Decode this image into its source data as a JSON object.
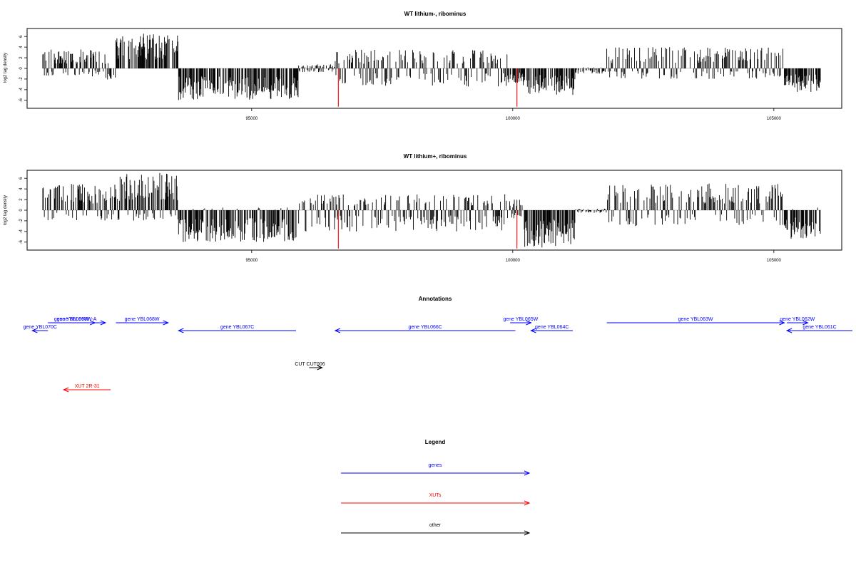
{
  "chart_data": [
    {
      "type": "bar",
      "title": "WT lithium-, ribominus",
      "ylabel": "log2 tag density",
      "xlim": [
        90700,
        106300
      ],
      "ylim": [
        -7.5,
        7.5
      ],
      "yticks": [
        "6",
        "4",
        "2",
        "0",
        "-2",
        "-4",
        "-6"
      ],
      "xticks": [
        95000,
        100000,
        105000
      ],
      "xtick_labels": [
        "95000",
        "100000",
        "105000"
      ],
      "bar_color": "#000000",
      "highlight_color": "#ff0000",
      "highlights": [
        {
          "x": 96660,
          "y": -7.2
        },
        {
          "x": 100080,
          "y": -7.2
        }
      ],
      "profile": [
        {
          "from": 91000,
          "to": 92200,
          "max": 3.6,
          "min": -1.5
        },
        {
          "from": 92200,
          "to": 92400,
          "max": 1.0,
          "min": -2.5
        },
        {
          "from": 92400,
          "to": 93600,
          "max": 6.7,
          "min": 0
        },
        {
          "from": 93600,
          "to": 95900,
          "max": 0,
          "min": -6.0
        },
        {
          "from": 95900,
          "to": 96600,
          "max": 0.8,
          "min": -0.8
        },
        {
          "from": 96600,
          "to": 99900,
          "max": 3.5,
          "min": -3.5
        },
        {
          "from": 99900,
          "to": 100200,
          "max": 0,
          "min": -3.0
        },
        {
          "from": 100200,
          "to": 101200,
          "max": 0,
          "min": -5.0
        },
        {
          "from": 101200,
          "to": 101800,
          "max": 0.2,
          "min": -1.0
        },
        {
          "from": 101800,
          "to": 105200,
          "max": 4.0,
          "min": -2.0
        },
        {
          "from": 105200,
          "to": 105900,
          "max": 0,
          "min": -4.5
        }
      ]
    },
    {
      "type": "bar",
      "title": "WT lithium+, ribominus",
      "ylabel": "log2 tag density",
      "xlim": [
        90700,
        106300
      ],
      "ylim": [
        -7.5,
        7.5
      ],
      "yticks": [
        "6",
        "4",
        "2",
        "0",
        "-2",
        "-4",
        "-6"
      ],
      "xticks": [
        95000,
        100000,
        105000
      ],
      "xtick_labels": [
        "95000",
        "100000",
        "105000"
      ],
      "bar_color": "#000000",
      "highlight_color": "#ff0000",
      "highlights": [
        {
          "x": 96660,
          "y": -7.2
        },
        {
          "x": 100080,
          "y": -7.2
        }
      ],
      "profile": [
        {
          "from": 91000,
          "to": 92400,
          "max": 5.0,
          "min": -2.0
        },
        {
          "from": 92400,
          "to": 93600,
          "max": 7.0,
          "min": -2.0
        },
        {
          "from": 93600,
          "to": 95900,
          "max": 0.5,
          "min": -6.0
        },
        {
          "from": 95900,
          "to": 99900,
          "max": 3.0,
          "min": -4.0
        },
        {
          "from": 99900,
          "to": 100200,
          "max": 2.0,
          "min": -2.0
        },
        {
          "from": 100200,
          "to": 101200,
          "max": 0,
          "min": -7.0
        },
        {
          "from": 101200,
          "to": 101800,
          "max": 0.3,
          "min": -0.5
        },
        {
          "from": 101800,
          "to": 105200,
          "max": 5.0,
          "min": -3.0
        },
        {
          "from": 105200,
          "to": 105900,
          "max": 0.5,
          "min": -5.5
        }
      ]
    }
  ],
  "annotations": {
    "title": "Annotations",
    "genes": [
      {
        "label": "gene YBL070C",
        "from": 90800,
        "to": 91100,
        "dir": "left",
        "row": 2
      },
      {
        "label": "gene YBL069W",
        "from": 91100,
        "to": 92000,
        "dir": "right",
        "row": 1
      },
      {
        "label": "gene YBL068W-A",
        "from": 91100,
        "to": 92200,
        "dir": "right",
        "row": 1
      },
      {
        "label": "gene YBL068W",
        "from": 92400,
        "to": 93400,
        "dir": "right",
        "row": 1
      },
      {
        "label": "gene YBL067C",
        "from": 93600,
        "to": 95850,
        "dir": "left",
        "row": 2
      },
      {
        "label": "gene YBL066C",
        "from": 96600,
        "to": 100050,
        "dir": "left",
        "row": 2
      },
      {
        "label": "gene YBL065W",
        "from": 99950,
        "to": 100350,
        "dir": "right",
        "row": 1
      },
      {
        "label": "gene YBL064C",
        "from": 100350,
        "to": 101150,
        "dir": "left",
        "row": 2
      },
      {
        "label": "gene YBL063W",
        "from": 101800,
        "to": 105200,
        "dir": "right",
        "row": 1
      },
      {
        "label": "gene YBL062W",
        "from": 105250,
        "to": 105650,
        "dir": "right",
        "row": 1
      },
      {
        "label": "gene YBL061C",
        "from": 105250,
        "to": 107000,
        "dir": "left",
        "row": 2
      }
    ],
    "others": [
      {
        "label": "CUT CUT006",
        "from": 96100,
        "to": 96350,
        "dir": "right"
      }
    ],
    "xuts": [
      {
        "label": "XUT 2R-31",
        "from": 91400,
        "to": 92300,
        "dir": "left"
      }
    ]
  },
  "legend": {
    "title": "Legend",
    "items": [
      {
        "label": "genes",
        "color": "#0000ff"
      },
      {
        "label": "XUTs",
        "color": "#ff0000"
      },
      {
        "label": "other",
        "color": "#000000"
      }
    ]
  }
}
